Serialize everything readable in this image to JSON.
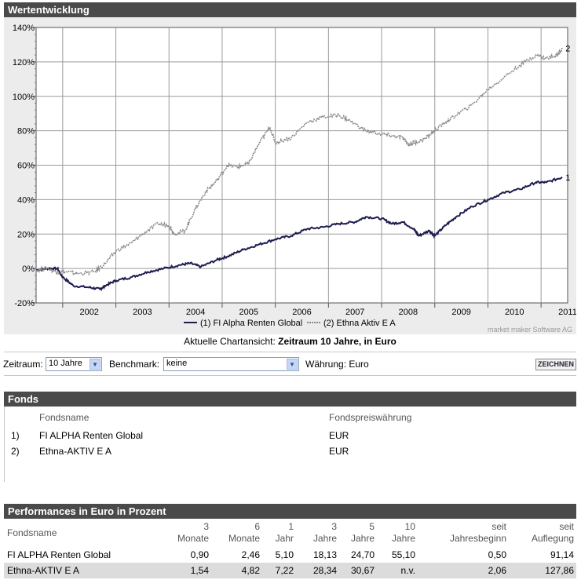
{
  "section_chart": {
    "title": "Wertentwicklung"
  },
  "caption": {
    "prefix": "Aktuelle Chartansicht:",
    "value": "Zeitraum 10 Jahre, in Euro"
  },
  "controls": {
    "zeitraum_label": "Zeitraum:",
    "zeitraum_value": "10 Jahre",
    "benchmark_label": "Benchmark:",
    "benchmark_value": "keine",
    "currency_label": "Währung: Euro",
    "draw_button": "ZEICHNEN"
  },
  "fonds": {
    "title": "Fonds",
    "col_name": "Fondsname",
    "col_currency": "Fondspreiswährung",
    "rows": [
      {
        "idx": "1)",
        "name": "FI ALPHA Renten Global",
        "currency": "EUR"
      },
      {
        "idx": "2)",
        "name": "Ethna-AKTIV E A",
        "currency": "EUR"
      }
    ]
  },
  "performance": {
    "title": "Performances in Euro in Prozent",
    "col_name": "Fondsname",
    "cols": [
      {
        "l1": "3",
        "l2": "Monate"
      },
      {
        "l1": "6",
        "l2": "Monate"
      },
      {
        "l1": "1",
        "l2": "Jahr"
      },
      {
        "l1": "3",
        "l2": "Jahre"
      },
      {
        "l1": "5",
        "l2": "Jahre"
      },
      {
        "l1": "10",
        "l2": "Jahre"
      },
      {
        "l1": "seit",
        "l2": "Jahresbeginn"
      },
      {
        "l1": "seit",
        "l2": "Auflegung"
      }
    ],
    "rows": [
      {
        "name": "FI ALPHA Renten Global",
        "values": [
          "0,90",
          "2,46",
          "5,10",
          "18,13",
          "24,70",
          "55,10",
          "0,50",
          "91,14"
        ]
      },
      {
        "name": "Ethna-AKTIV E A",
        "values": [
          "1,54",
          "4,82",
          "7,22",
          "28,34",
          "30,67",
          "n.v.",
          "2,06",
          "127,86"
        ]
      }
    ]
  },
  "chart_data": {
    "type": "line",
    "title": "Wertentwicklung",
    "xlabel": "",
    "ylabel": "",
    "xlim": [
      2001.5,
      2011.5
    ],
    "ylim": [
      -20,
      140
    ],
    "grid": true,
    "y_ticks": [
      -20,
      0,
      20,
      40,
      60,
      80,
      100,
      120,
      140
    ],
    "y_tick_labels": [
      "-20%",
      "0%",
      "20%",
      "40%",
      "60%",
      "80%",
      "100%",
      "120%",
      "140%"
    ],
    "x_tick_labels": [
      "2002",
      "2003",
      "2004",
      "2005",
      "2006",
      "2007",
      "2008",
      "2009",
      "2010",
      "2011"
    ],
    "copyright": "market maker Software AG",
    "series": [
      {
        "name": "(1) FI Alpha Renten Global",
        "end_label": "1",
        "color": "#1c1c50",
        "style": "solid",
        "points": [
          [
            2001.5,
            -1
          ],
          [
            2001.7,
            0
          ],
          [
            2001.9,
            0
          ],
          [
            2002.0,
            -5
          ],
          [
            2002.2,
            -10
          ],
          [
            2002.5,
            -11
          ],
          [
            2002.7,
            -12
          ],
          [
            2002.8,
            -10
          ],
          [
            2003.0,
            -7
          ],
          [
            2003.3,
            -5
          ],
          [
            2003.6,
            -2
          ],
          [
            2003.9,
            0
          ],
          [
            2004.2,
            2
          ],
          [
            2004.4,
            3
          ],
          [
            2004.6,
            1
          ],
          [
            2004.9,
            5
          ],
          [
            2005.1,
            7
          ],
          [
            2005.4,
            11
          ],
          [
            2005.7,
            14
          ],
          [
            2006.0,
            17
          ],
          [
            2006.3,
            19
          ],
          [
            2006.6,
            23
          ],
          [
            2006.9,
            24
          ],
          [
            2007.2,
            26
          ],
          [
            2007.5,
            27
          ],
          [
            2007.7,
            30
          ],
          [
            2008.0,
            29
          ],
          [
            2008.2,
            26
          ],
          [
            2008.4,
            27
          ],
          [
            2008.6,
            23
          ],
          [
            2008.7,
            19
          ],
          [
            2008.9,
            22
          ],
          [
            2009.0,
            19
          ],
          [
            2009.2,
            25
          ],
          [
            2009.4,
            30
          ],
          [
            2009.7,
            36
          ],
          [
            2010.0,
            40
          ],
          [
            2010.3,
            44
          ],
          [
            2010.6,
            46
          ],
          [
            2010.9,
            50
          ],
          [
            2011.1,
            50
          ],
          [
            2011.4,
            53
          ]
        ]
      },
      {
        "name": "(2) Ethna Aktiv E A",
        "end_label": "2",
        "color": "#8a8a8a",
        "style": "dashed",
        "points": [
          [
            2001.5,
            -1
          ],
          [
            2001.7,
            0
          ],
          [
            2001.9,
            -2
          ],
          [
            2002.1,
            -2
          ],
          [
            2002.3,
            -3
          ],
          [
            2002.6,
            -2
          ],
          [
            2002.8,
            3
          ],
          [
            2003.0,
            10
          ],
          [
            2003.3,
            15
          ],
          [
            2003.5,
            20
          ],
          [
            2003.8,
            26
          ],
          [
            2004.0,
            25
          ],
          [
            2004.1,
            20
          ],
          [
            2004.3,
            22
          ],
          [
            2004.5,
            35
          ],
          [
            2004.7,
            45
          ],
          [
            2004.9,
            51
          ],
          [
            2005.1,
            60
          ],
          [
            2005.3,
            59
          ],
          [
            2005.5,
            61
          ],
          [
            2005.7,
            73
          ],
          [
            2005.9,
            82
          ],
          [
            2006.0,
            73
          ],
          [
            2006.3,
            76
          ],
          [
            2006.6,
            85
          ],
          [
            2006.9,
            88
          ],
          [
            2007.2,
            89
          ],
          [
            2007.4,
            86
          ],
          [
            2007.7,
            80
          ],
          [
            2008.0,
            78
          ],
          [
            2008.2,
            77
          ],
          [
            2008.4,
            76
          ],
          [
            2008.5,
            72
          ],
          [
            2008.6,
            73
          ],
          [
            2008.8,
            75
          ],
          [
            2009.0,
            80
          ],
          [
            2009.2,
            85
          ],
          [
            2009.4,
            89
          ],
          [
            2009.7,
            95
          ],
          [
            2010.0,
            104
          ],
          [
            2010.3,
            111
          ],
          [
            2010.6,
            118
          ],
          [
            2010.9,
            124
          ],
          [
            2011.1,
            122
          ],
          [
            2011.3,
            124
          ],
          [
            2011.4,
            128
          ]
        ]
      }
    ]
  }
}
